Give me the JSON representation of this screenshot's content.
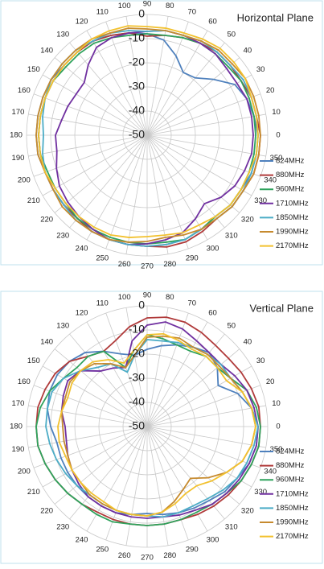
{
  "chart_data": [
    {
      "type": "radar",
      "title": "Horizontal Plane",
      "categories": [
        0,
        10,
        20,
        30,
        40,
        50,
        60,
        70,
        80,
        90,
        100,
        110,
        120,
        130,
        140,
        150,
        160,
        170,
        180,
        190,
        200,
        210,
        220,
        230,
        240,
        250,
        260,
        270,
        280,
        290,
        300,
        310,
        320,
        330,
        340,
        350
      ],
      "ylim": [
        -50,
        0
      ],
      "yticks": [
        -50,
        -40,
        -30,
        -20,
        -10,
        0
      ],
      "series": [
        {
          "name": "824MHz",
          "color": "#4f81bd",
          "values": [
            -4,
            -5,
            -6,
            -8,
            -14,
            -19,
            -20,
            -15,
            -10,
            -8,
            -7,
            -6,
            -5,
            -5,
            -5,
            -4,
            -4,
            -4,
            -4,
            -4,
            -5,
            -5,
            -5,
            -5,
            -4,
            -4,
            -4,
            -4,
            -4,
            -4,
            -5,
            -6,
            -5,
            -5,
            -4,
            -4
          ]
        },
        {
          "name": "880MHz",
          "color": "#b03a3a",
          "values": [
            -3,
            -4,
            -4,
            -5,
            -5,
            -5,
            -6,
            -7,
            -8,
            -9,
            -7,
            -6,
            -5,
            -5,
            -5,
            -5,
            -5,
            -5,
            -5,
            -5,
            -5,
            -5,
            -5,
            -5,
            -4,
            -4,
            -4,
            -4,
            -3,
            -3,
            -4,
            -5,
            -4,
            -4,
            -3,
            -3
          ]
        },
        {
          "name": "960MHz",
          "color": "#2ea25c",
          "values": [
            -5,
            -5,
            -5,
            -5,
            -6,
            -6,
            -6,
            -7,
            -8,
            -8,
            -8,
            -7,
            -6,
            -6,
            -6,
            -5,
            -5,
            -5,
            -5,
            -5,
            -6,
            -6,
            -6,
            -5,
            -5,
            -5,
            -5,
            -5,
            -5,
            -4,
            -5,
            -6,
            -5,
            -5,
            -5,
            -5
          ]
        },
        {
          "name": "1710MHz",
          "color": "#7030a0",
          "values": [
            -6,
            -6,
            -6,
            -7,
            -7,
            -6,
            -6,
            -6,
            -6,
            -7,
            -7,
            -7,
            -8,
            -12,
            -16,
            -16,
            -15,
            -14,
            -12,
            -12,
            -10,
            -8,
            -7,
            -6,
            -5,
            -4,
            -4,
            -5,
            -6,
            -7,
            -10,
            -13,
            -10,
            -8,
            -7,
            -6
          ]
        },
        {
          "name": "1850MHz",
          "color": "#4bacc6",
          "values": [
            -4,
            -4,
            -4,
            -4,
            -5,
            -5,
            -5,
            -6,
            -6,
            -7,
            -6,
            -5,
            -5,
            -4,
            -4,
            -4,
            -5,
            -6,
            -7,
            -6,
            -5,
            -5,
            -5,
            -4,
            -4,
            -4,
            -4,
            -4,
            -4,
            -4,
            -5,
            -5,
            -4,
            -4,
            -4,
            -4
          ]
        },
        {
          "name": "1990MHz",
          "color": "#c68a2e",
          "values": [
            -3,
            -3,
            -3,
            -3,
            -4,
            -4,
            -5,
            -6,
            -6,
            -6,
            -5,
            -5,
            -4,
            -4,
            -4,
            -4,
            -4,
            -4,
            -4,
            -4,
            -5,
            -5,
            -4,
            -4,
            -4,
            -4,
            -5,
            -6,
            -7,
            -6,
            -5,
            -5,
            -4,
            -4,
            -3,
            -3
          ]
        },
        {
          "name": "2170MHz",
          "color": "#f2c12e",
          "values": [
            -4,
            -4,
            -4,
            -3,
            -3,
            -3,
            -4,
            -5,
            -5,
            -5,
            -4,
            -4,
            -4,
            -5,
            -5,
            -5,
            -5,
            -5,
            -5,
            -5,
            -5,
            -6,
            -6,
            -6,
            -6,
            -6,
            -7,
            -8,
            -8,
            -7,
            -7,
            -6,
            -5,
            -5,
            -5,
            -4
          ]
        }
      ]
    },
    {
      "type": "radar",
      "title": "Vertical Plane",
      "categories": [
        0,
        10,
        20,
        30,
        40,
        50,
        60,
        70,
        80,
        90,
        100,
        110,
        120,
        130,
        140,
        150,
        160,
        170,
        180,
        190,
        200,
        210,
        220,
        230,
        240,
        250,
        260,
        270,
        280,
        290,
        300,
        310,
        320,
        330,
        340,
        350
      ],
      "ylim": [
        -50,
        0
      ],
      "yticks": [
        -50,
        -40,
        -30,
        -20,
        -10,
        0
      ],
      "series": [
        {
          "name": "824MHz",
          "color": "#4f81bd",
          "values": [
            -4,
            -6,
            -10,
            -16,
            -12,
            -10,
            -12,
            -14,
            -16,
            -18,
            -20,
            -18,
            -14,
            -10,
            -8,
            -7,
            -7,
            -8,
            -10,
            -12,
            -12,
            -12,
            -12,
            -12,
            -12,
            -12,
            -13,
            -14,
            -13,
            -12,
            -11,
            -10,
            -8,
            -7,
            -5,
            -4
          ]
        },
        {
          "name": "880MHz",
          "color": "#b03a3a",
          "values": [
            -3,
            -3,
            -4,
            -5,
            -6,
            -6,
            -5,
            -4,
            -4,
            -5,
            -8,
            -12,
            -14,
            -12,
            -8,
            -6,
            -5,
            -4,
            -4,
            -4,
            -5,
            -6,
            -7,
            -8,
            -9,
            -9,
            -9,
            -9,
            -9,
            -9,
            -8,
            -7,
            -6,
            -5,
            -4,
            -3
          ]
        },
        {
          "name": "960MHz",
          "color": "#2ea25c",
          "values": [
            -3,
            -4,
            -6,
            -10,
            -12,
            -12,
            -14,
            -14,
            -13,
            -12,
            -18,
            -24,
            -14,
            -12,
            -12,
            -10,
            -7,
            -5,
            -4,
            -4,
            -5,
            -6,
            -7,
            -8,
            -8,
            -8,
            -9,
            -9,
            -9,
            -9,
            -9,
            -8,
            -7,
            -5,
            -4,
            -3
          ]
        },
        {
          "name": "1710MHz",
          "color": "#7030a0",
          "values": [
            -4,
            -5,
            -6,
            -8,
            -10,
            -10,
            -9,
            -7,
            -6,
            -8,
            -14,
            -24,
            -22,
            -20,
            -14,
            -12,
            -13,
            -14,
            -16,
            -16,
            -15,
            -14,
            -13,
            -12,
            -12,
            -12,
            -12,
            -12,
            -12,
            -11,
            -10,
            -8,
            -7,
            -6,
            -5,
            -4
          ]
        },
        {
          "name": "1850MHz",
          "color": "#4bacc6",
          "values": [
            -4,
            -6,
            -8,
            -10,
            -10,
            -11,
            -12,
            -13,
            -14,
            -14,
            -20,
            -26,
            -20,
            -18,
            -14,
            -10,
            -8,
            -8,
            -8,
            -9,
            -10,
            -11,
            -12,
            -13,
            -13,
            -13,
            -13,
            -13,
            -12,
            -12,
            -12,
            -11,
            -9,
            -7,
            -6,
            -5
          ]
        },
        {
          "name": "1990MHz",
          "color": "#c68a2e",
          "values": [
            -5,
            -6,
            -8,
            -10,
            -11,
            -11,
            -12,
            -11,
            -12,
            -13,
            -20,
            -24,
            -20,
            -16,
            -14,
            -13,
            -14,
            -14,
            -15,
            -15,
            -15,
            -14,
            -14,
            -13,
            -13,
            -13,
            -13,
            -13,
            -14,
            -17,
            -20,
            -22,
            -17,
            -12,
            -8,
            -6
          ]
        },
        {
          "name": "2170MHz",
          "color": "#f2c12e",
          "values": [
            -5,
            -6,
            -8,
            -12,
            -12,
            -12,
            -13,
            -12,
            -11,
            -12,
            -18,
            -22,
            -18,
            -15,
            -14,
            -14,
            -15,
            -14,
            -13,
            -13,
            -14,
            -14,
            -14,
            -14,
            -14,
            -13,
            -13,
            -13,
            -14,
            -16,
            -18,
            -18,
            -15,
            -12,
            -8,
            -6
          ]
        }
      ]
    }
  ]
}
